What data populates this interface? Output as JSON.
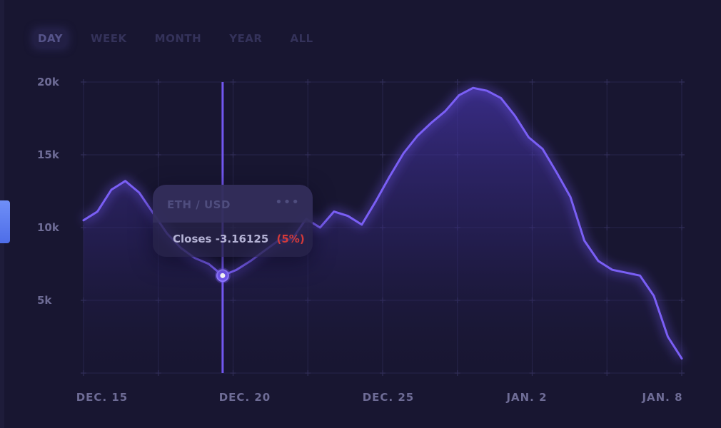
{
  "tabs": [
    {
      "label": "DAY",
      "active": true
    },
    {
      "label": "WEEK",
      "active": false
    },
    {
      "label": "MONTH",
      "active": false
    },
    {
      "label": "YEAR",
      "active": false
    },
    {
      "label": "ALL",
      "active": false
    }
  ],
  "tooltip": {
    "pair": "ETH / USD",
    "menu": "•••",
    "label": "Closes",
    "value": "-3.16125",
    "percent": "(5%)"
  },
  "colors": {
    "line": "#7257f0",
    "negative": "#d23a3a"
  },
  "chart_data": {
    "type": "area",
    "x_ticks": [
      "DEC. 15",
      "DEC. 20",
      "DEC. 25",
      "JAN. 2",
      "JAN. 8"
    ],
    "y_ticks": [
      "20k",
      "15k",
      "10k",
      "5k"
    ],
    "ylim": [
      0,
      20000
    ],
    "grid": true,
    "highlight_index": 10,
    "series": [
      {
        "values": [
          10500,
          11100,
          12600,
          13200,
          12400,
          11000,
          9600,
          8600,
          7900,
          7500,
          6700,
          7100,
          7700,
          8400,
          9100,
          9200,
          10600,
          10000,
          11100,
          10800,
          10200,
          11800,
          13500,
          15100,
          16300,
          17200,
          18000,
          19100,
          19600,
          19400,
          18900,
          17700,
          16200,
          15400,
          13800,
          12100,
          9100,
          7700,
          7100,
          6900,
          6700,
          5300,
          2500,
          1000
        ]
      }
    ]
  }
}
